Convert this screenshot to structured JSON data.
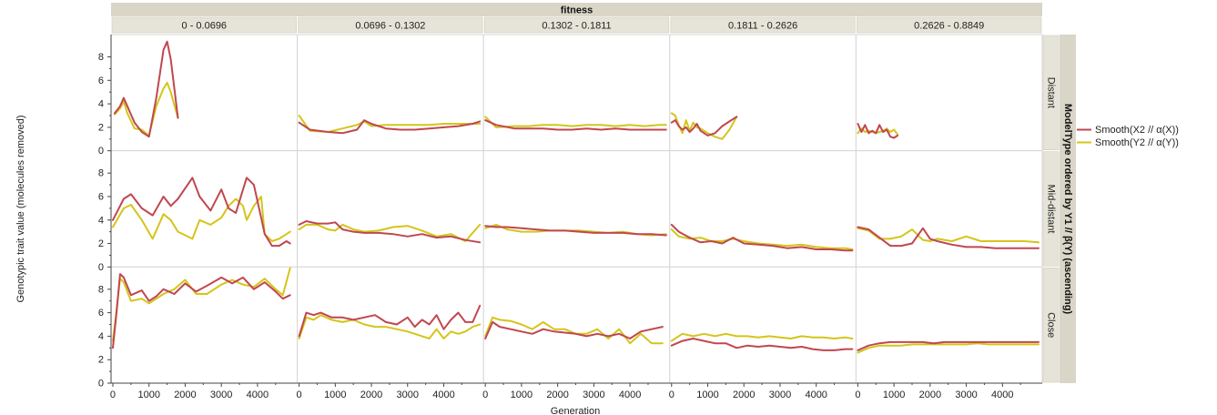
{
  "chart_data": {
    "type": "line",
    "top_group_label": "fitness",
    "right_group_label": "ModelType ordered by Y1 // β(Y) (ascending)",
    "xlabel": "Generation",
    "ylabel": "Genotypic trait value (molecules removed)",
    "columns": [
      "0 - 0.0696",
      "0.0696 - 0.1302",
      "0.1302 - 0.1811",
      "0.1811 - 0.2626",
      "0.2626 - 0.8849"
    ],
    "rows": [
      "Distant",
      "Mid-distant",
      "Close"
    ],
    "x_ticks": [
      0,
      1000,
      2000,
      3000,
      4000
    ],
    "xlim": [
      -50,
      5100
    ],
    "y_ticks": [
      0,
      2,
      4,
      6,
      8
    ],
    "ylim": [
      0,
      9.9
    ],
    "series_meta": [
      {
        "name": "Smooth(X2 // α(X))",
        "color": "#c0474f"
      },
      {
        "name": "Smooth(Y2 // α(Y))",
        "color": "#d4c51a"
      }
    ],
    "panels": [
      [
        {
          "x": [
            50,
            200,
            300,
            400,
            600,
            800,
            1000,
            1200,
            1400,
            1500,
            1600,
            1800
          ],
          "s1": [
            3.2,
            3.8,
            4.5,
            3.8,
            2.4,
            1.6,
            1.2,
            4.5,
            8.6,
            9.3,
            7.8,
            2.8
          ],
          "s2": [
            3.1,
            3.6,
            4.2,
            3.2,
            1.9,
            1.8,
            1.3,
            3.8,
            5.3,
            5.8,
            5.0,
            2.8
          ]
        },
        {
          "x": [
            0,
            300,
            800,
            1200,
            1600,
            1800,
            2000,
            2400,
            2800,
            3200,
            3600,
            4000,
            4400,
            4800,
            5000
          ],
          "s1": [
            2.4,
            1.8,
            1.6,
            1.5,
            1.8,
            2.6,
            2.3,
            1.9,
            1.8,
            1.8,
            1.9,
            2.0,
            2.1,
            2.3,
            2.5
          ],
          "s2": [
            3.0,
            1.7,
            1.6,
            1.9,
            2.2,
            2.5,
            2.1,
            2.2,
            2.2,
            2.2,
            2.2,
            2.3,
            2.3,
            2.3,
            2.3
          ]
        },
        {
          "x": [
            0,
            300,
            800,
            1200,
            1600,
            2000,
            2400,
            2800,
            3200,
            3600,
            4000,
            4400,
            4800,
            5000
          ],
          "s1": [
            2.6,
            2.2,
            1.9,
            1.9,
            1.9,
            1.8,
            1.8,
            1.9,
            1.8,
            1.9,
            1.8,
            1.8,
            1.8,
            1.8
          ],
          "s2": [
            2.9,
            2.0,
            2.1,
            2.1,
            2.2,
            2.2,
            2.1,
            2.2,
            2.2,
            2.1,
            2.2,
            2.1,
            2.2,
            2.2
          ]
        },
        {
          "x": [
            0,
            100,
            200,
            300,
            400,
            500,
            600,
            700,
            800,
            1000,
            1200,
            1400,
            1600,
            1800
          ],
          "s1": [
            2.4,
            2.6,
            2.1,
            1.8,
            2.0,
            1.6,
            1.9,
            2.3,
            1.7,
            1.3,
            1.5,
            2.1,
            2.5,
            2.9
          ],
          "s2": [
            3.2,
            3.0,
            2.2,
            1.5,
            2.6,
            1.7,
            2.4,
            2.0,
            1.9,
            1.5,
            1.2,
            1.0,
            1.8,
            2.9
          ]
        },
        {
          "x": [
            0,
            100,
            200,
            300,
            400,
            500,
            600,
            700,
            800,
            900,
            1000,
            1100
          ],
          "s1": [
            2.3,
            1.6,
            2.2,
            1.5,
            1.7,
            1.5,
            2.2,
            1.6,
            1.8,
            1.2,
            1.1,
            1.3
          ],
          "s2": [
            1.5,
            1.9,
            1.6,
            1.7,
            1.6,
            1.5,
            1.6,
            1.7,
            1.9,
            1.6,
            1.8,
            1.4
          ]
        }
      ],
      [
        {
          "x": [
            0,
            300,
            500,
            800,
            1100,
            1400,
            1600,
            1800,
            2200,
            2400,
            2700,
            3000,
            3200,
            3400,
            3600,
            3700,
            3900,
            4100,
            4200,
            4400,
            4600,
            4800,
            4900
          ],
          "s1": [
            4.0,
            5.8,
            6.2,
            5.0,
            4.4,
            6.0,
            5.2,
            5.8,
            7.6,
            6.0,
            4.8,
            6.6,
            5.0,
            4.6,
            6.6,
            7.6,
            7.0,
            4.2,
            2.8,
            1.8,
            1.8,
            2.2,
            2.0
          ],
          "s2": [
            3.4,
            5.0,
            5.3,
            4.0,
            2.4,
            4.5,
            4.0,
            3.0,
            2.4,
            4.0,
            3.6,
            4.2,
            5.2,
            5.8,
            5.2,
            4.0,
            5.2,
            6.0,
            2.8,
            2.2,
            2.4,
            2.8,
            3.0
          ]
        },
        {
          "x": [
            0,
            200,
            500,
            800,
            1000,
            1200,
            1500,
            1800,
            2200,
            2600,
            3000,
            3400,
            3800,
            4200,
            4600,
            5000
          ],
          "s1": [
            3.6,
            3.9,
            3.7,
            3.7,
            3.8,
            3.2,
            3.0,
            2.9,
            2.9,
            2.8,
            2.6,
            2.8,
            2.5,
            2.6,
            2.3,
            2.1
          ],
          "s2": [
            3.2,
            3.6,
            3.6,
            3.2,
            3.1,
            3.6,
            3.2,
            3.0,
            3.1,
            3.4,
            3.5,
            3.1,
            2.6,
            2.8,
            2.2,
            3.6
          ]
        },
        {
          "x": [
            0,
            300,
            600,
            1000,
            1400,
            1800,
            2200,
            2600,
            3000,
            3400,
            3800,
            4200,
            4600,
            5000
          ],
          "s1": [
            3.5,
            3.4,
            3.4,
            3.3,
            3.2,
            3.1,
            3.1,
            3.0,
            2.9,
            2.9,
            2.9,
            2.8,
            2.8,
            2.7
          ],
          "s2": [
            3.3,
            3.6,
            3.2,
            3.0,
            3.0,
            3.1,
            3.1,
            3.1,
            3.0,
            2.9,
            3.0,
            2.8,
            2.7,
            2.8
          ]
        },
        {
          "x": [
            0,
            200,
            500,
            800,
            1100,
            1400,
            1700,
            2000,
            2400,
            2800,
            3200,
            3600,
            4000,
            4400,
            4800,
            5000
          ],
          "s1": [
            3.6,
            3.0,
            2.5,
            2.1,
            2.2,
            2.0,
            2.5,
            2.0,
            1.9,
            1.8,
            1.6,
            1.7,
            1.5,
            1.5,
            1.4,
            1.4
          ],
          "s2": [
            3.2,
            2.6,
            2.4,
            2.5,
            2.2,
            2.2,
            2.4,
            2.2,
            2.0,
            1.9,
            1.8,
            1.9,
            1.7,
            1.6,
            1.6,
            1.5
          ]
        },
        {
          "x": [
            0,
            300,
            600,
            900,
            1200,
            1500,
            1800,
            2000,
            2200,
            2600,
            3000,
            3400,
            3800,
            4200,
            4600,
            5000
          ],
          "s1": [
            3.4,
            3.2,
            2.5,
            1.8,
            1.8,
            2.0,
            3.3,
            2.4,
            2.2,
            1.9,
            1.7,
            1.7,
            1.6,
            1.6,
            1.6,
            1.6
          ],
          "s2": [
            3.3,
            3.1,
            2.4,
            2.4,
            2.6,
            3.2,
            2.3,
            2.2,
            2.4,
            2.2,
            2.6,
            2.2,
            2.2,
            2.2,
            2.2,
            2.1
          ]
        }
      ],
      [
        {
          "x": [
            0,
            100,
            200,
            300,
            500,
            800,
            1000,
            1200,
            1400,
            1700,
            2000,
            2300,
            2600,
            3000,
            3300,
            3600,
            3900,
            4200,
            4500,
            4700,
            4900
          ],
          "s1": [
            3.0,
            6.0,
            9.3,
            9.0,
            7.5,
            7.9,
            7.0,
            7.4,
            8.0,
            7.6,
            8.5,
            7.8,
            8.3,
            9.0,
            8.5,
            9.0,
            8.0,
            8.6,
            7.8,
            7.2,
            7.5
          ],
          "s2": [
            3.6,
            6.2,
            8.9,
            8.6,
            7.0,
            7.2,
            6.8,
            7.2,
            7.6,
            8.0,
            8.8,
            7.6,
            7.6,
            8.4,
            8.8,
            8.4,
            8.2,
            8.9,
            8.0,
            7.5,
            9.8
          ]
        },
        {
          "x": [
            0,
            200,
            400,
            600,
            900,
            1200,
            1500,
            1800,
            2100,
            2400,
            2700,
            3000,
            3200,
            3400,
            3600,
            3800,
            4000,
            4200,
            4400,
            4600,
            4800,
            5000
          ],
          "s1": [
            4.0,
            6.0,
            5.8,
            6.0,
            5.6,
            5.6,
            5.4,
            5.6,
            5.8,
            5.2,
            5.0,
            5.6,
            4.8,
            5.4,
            5.0,
            5.8,
            4.6,
            5.4,
            6.0,
            5.2,
            5.2,
            6.6
          ],
          "s2": [
            3.8,
            5.6,
            5.4,
            5.8,
            5.4,
            5.2,
            5.4,
            5.0,
            4.8,
            4.8,
            4.6,
            4.4,
            4.2,
            4.0,
            3.8,
            4.6,
            3.8,
            4.4,
            4.2,
            4.4,
            4.8,
            5.0
          ]
        },
        {
          "x": [
            0,
            200,
            400,
            700,
            1000,
            1300,
            1600,
            1900,
            2200,
            2500,
            2800,
            3100,
            3400,
            3700,
            4000,
            4300,
            4600,
            4900
          ],
          "s1": [
            3.8,
            5.2,
            4.8,
            4.6,
            4.4,
            4.2,
            4.6,
            4.4,
            4.3,
            4.2,
            4.0,
            4.2,
            4.0,
            4.2,
            3.8,
            4.4,
            4.6,
            4.8
          ],
          "s2": [
            4.0,
            5.6,
            5.4,
            5.3,
            5.0,
            4.6,
            5.2,
            4.6,
            4.6,
            4.2,
            4.2,
            4.6,
            3.8,
            4.6,
            3.4,
            4.2,
            3.4,
            3.4
          ]
        },
        {
          "x": [
            0,
            300,
            600,
            900,
            1200,
            1500,
            1800,
            2100,
            2400,
            2700,
            3000,
            3300,
            3600,
            3900,
            4200,
            4500,
            4800,
            5000
          ],
          "s1": [
            3.2,
            3.6,
            3.8,
            3.6,
            3.4,
            3.4,
            3.0,
            3.2,
            3.1,
            3.2,
            3.1,
            3.0,
            3.1,
            2.9,
            2.8,
            2.8,
            2.9,
            2.9
          ],
          "s2": [
            3.6,
            4.2,
            4.0,
            4.2,
            4.0,
            4.2,
            4.0,
            4.0,
            3.9,
            4.0,
            3.9,
            3.8,
            4.0,
            3.9,
            3.9,
            3.8,
            3.9,
            3.8
          ]
        },
        {
          "x": [
            0,
            300,
            600,
            900,
            1200,
            1500,
            1800,
            2100,
            2400,
            2700,
            3000,
            3300,
            3600,
            3900,
            4200,
            4500,
            4800,
            5000
          ],
          "s1": [
            2.8,
            3.2,
            3.4,
            3.5,
            3.5,
            3.5,
            3.5,
            3.4,
            3.5,
            3.5,
            3.5,
            3.5,
            3.5,
            3.5,
            3.5,
            3.5,
            3.5,
            3.5
          ],
          "s2": [
            2.6,
            3.0,
            3.2,
            3.2,
            3.2,
            3.3,
            3.3,
            3.3,
            3.3,
            3.3,
            3.3,
            3.4,
            3.3,
            3.3,
            3.3,
            3.3,
            3.3,
            3.3
          ]
        }
      ]
    ]
  }
}
